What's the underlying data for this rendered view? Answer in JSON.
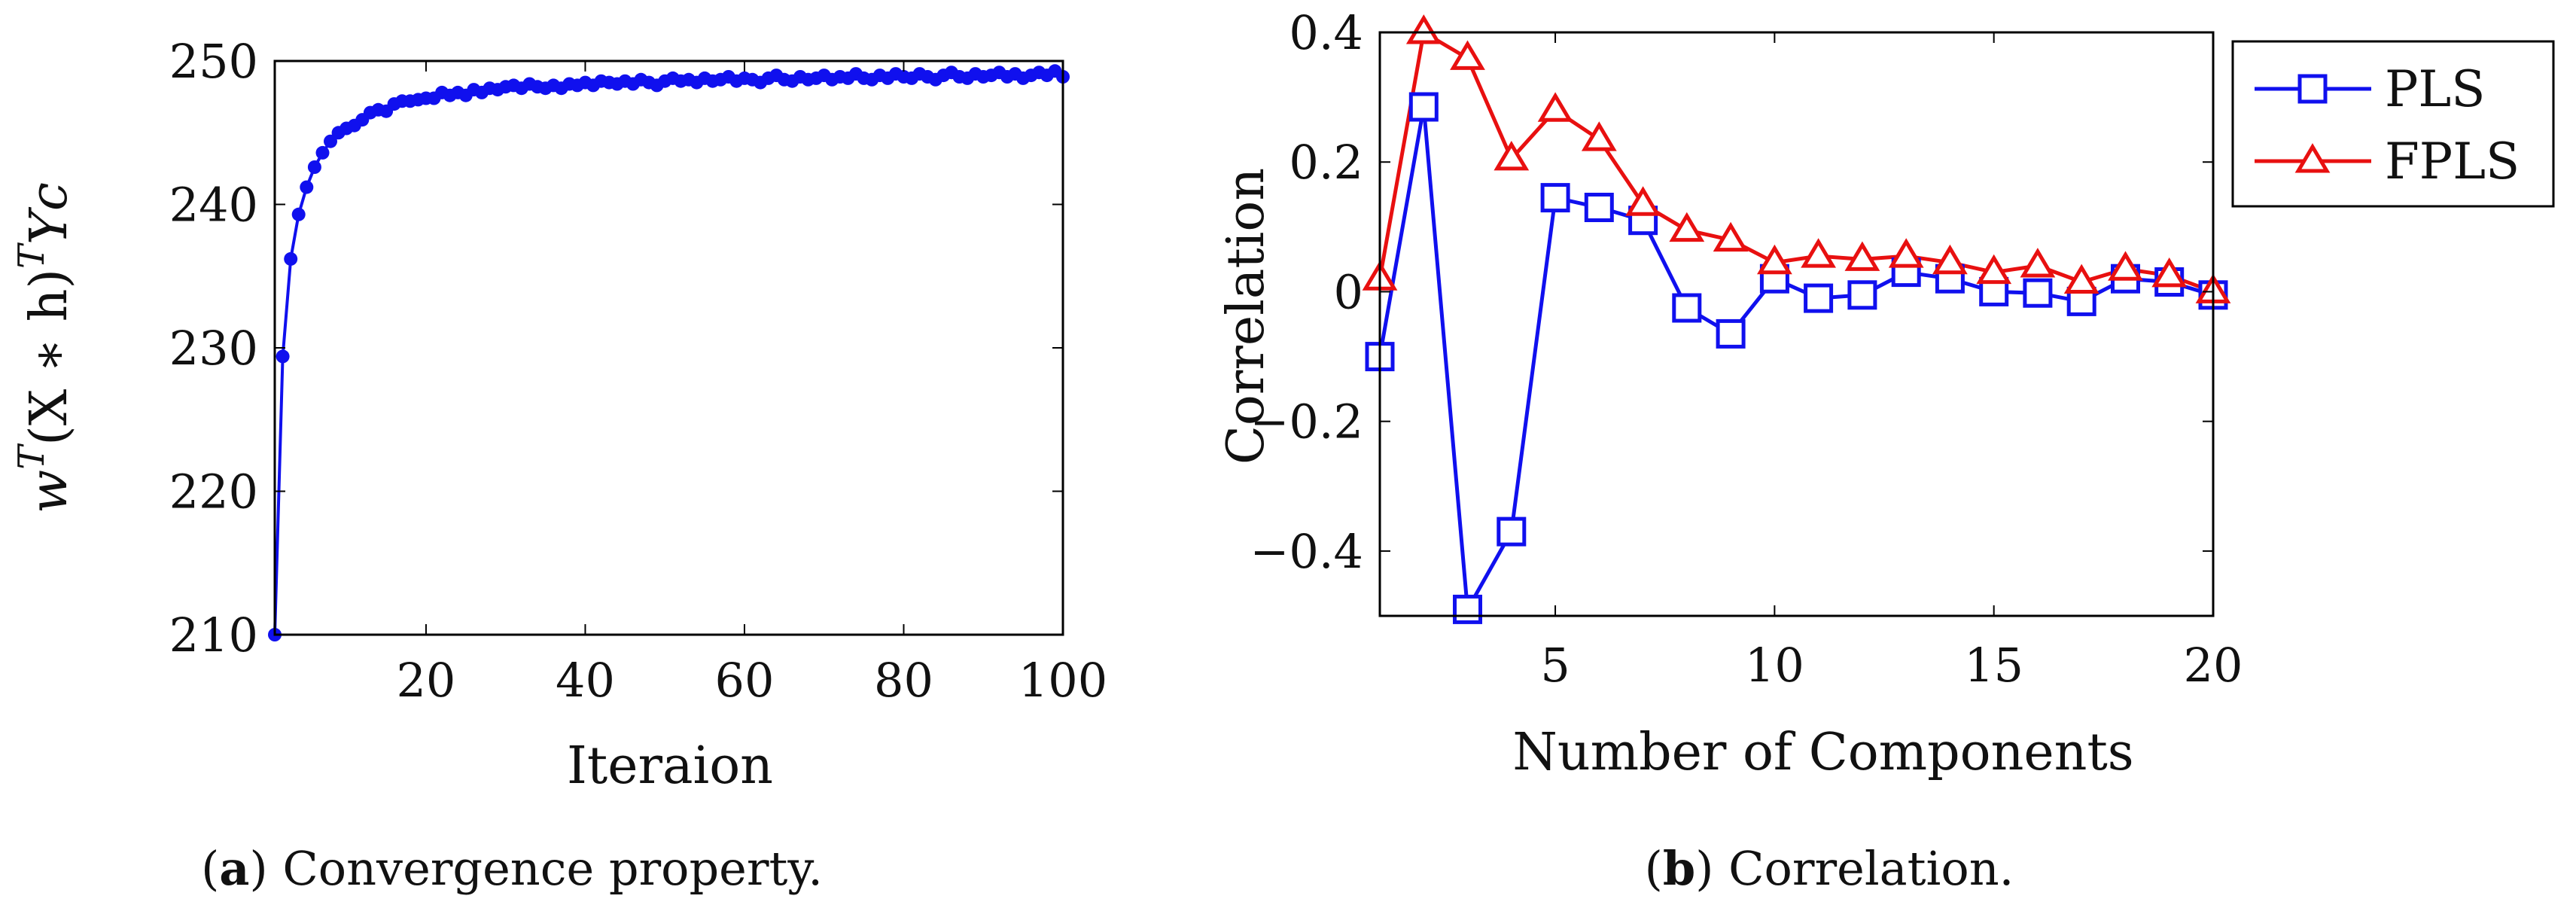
{
  "chart_data": [
    {
      "id": "a",
      "type": "line",
      "title": "",
      "xlabel": "Iteraion",
      "ylabel": "w^T(X * h)^T Y c",
      "ylabel_parts": {
        "w": "w",
        "T1": "T",
        "mid": "(X ∗ h)",
        "T2": "T",
        "Y": "Y",
        "c": "c"
      },
      "xlim": [
        1,
        100
      ],
      "ylim": [
        210,
        250
      ],
      "xticks": [
        20,
        40,
        60,
        80,
        100
      ],
      "yticks": [
        210,
        220,
        230,
        240,
        250
      ],
      "grid": false,
      "series": [
        {
          "name": "convergence",
          "color": "#1010ee",
          "marker": "circle",
          "x": [
            1,
            2,
            3,
            4,
            5,
            6,
            7,
            8,
            9,
            10,
            11,
            12,
            13,
            14,
            15,
            16,
            17,
            18,
            19,
            20,
            21,
            22,
            23,
            24,
            25,
            26,
            27,
            28,
            29,
            30,
            31,
            32,
            33,
            34,
            35,
            36,
            37,
            38,
            39,
            40,
            41,
            42,
            43,
            44,
            45,
            46,
            47,
            48,
            49,
            50,
            51,
            52,
            53,
            54,
            55,
            56,
            57,
            58,
            59,
            60,
            61,
            62,
            63,
            64,
            65,
            66,
            67,
            68,
            69,
            70,
            71,
            72,
            73,
            74,
            75,
            76,
            77,
            78,
            79,
            80,
            81,
            82,
            83,
            84,
            85,
            86,
            87,
            88,
            89,
            90,
            91,
            92,
            93,
            94,
            95,
            96,
            97,
            98,
            99,
            100
          ],
          "values": [
            210.0,
            229.4,
            236.2,
            239.3,
            241.2,
            242.6,
            243.6,
            244.4,
            245.0,
            245.3,
            245.5,
            245.9,
            246.4,
            246.6,
            246.5,
            247.0,
            247.2,
            247.2,
            247.3,
            247.4,
            247.4,
            247.8,
            247.6,
            247.8,
            247.6,
            248.0,
            247.8,
            248.1,
            248.0,
            248.2,
            248.3,
            248.1,
            248.4,
            248.2,
            248.1,
            248.3,
            248.1,
            248.4,
            248.3,
            248.5,
            248.3,
            248.6,
            248.5,
            248.4,
            248.6,
            248.4,
            248.7,
            248.5,
            248.3,
            248.6,
            248.8,
            248.6,
            248.7,
            248.5,
            248.8,
            248.6,
            248.7,
            248.9,
            248.6,
            248.8,
            248.7,
            248.5,
            248.8,
            249.0,
            248.7,
            248.6,
            248.9,
            248.7,
            248.8,
            249.0,
            248.7,
            248.9,
            248.8,
            249.1,
            248.8,
            248.7,
            249.0,
            248.8,
            249.1,
            248.9,
            248.8,
            249.1,
            248.9,
            248.7,
            249.0,
            249.2,
            248.9,
            248.8,
            249.1,
            248.9,
            249.0,
            249.2,
            248.9,
            249.1,
            248.8,
            249.0,
            249.2,
            249.0,
            249.3,
            248.9
          ]
        }
      ],
      "caption": {
        "label": "(a)",
        "label_inner": "a",
        "text": "Convergence property."
      }
    },
    {
      "id": "b",
      "type": "line",
      "title": "",
      "xlabel": "Number of Components",
      "ylabel": "Correlation",
      "xlim": [
        1,
        20
      ],
      "ylim": [
        -0.5,
        0.4
      ],
      "xticks": [
        5,
        10,
        15,
        20
      ],
      "yticks": [
        -0.4,
        -0.2,
        0,
        0.2,
        0.4
      ],
      "ytick_labels": [
        "−0.4",
        "−0.2",
        "0",
        "0.2",
        "0.4"
      ],
      "grid": false,
      "legend": "top-right",
      "x": [
        1,
        2,
        3,
        4,
        5,
        6,
        7,
        8,
        9,
        10,
        11,
        12,
        13,
        14,
        15,
        16,
        17,
        18,
        19,
        20
      ],
      "series": [
        {
          "name": "PLS",
          "color": "#1010ee",
          "marker": "square",
          "values": [
            -0.1,
            0.285,
            -0.49,
            -0.37,
            0.145,
            0.13,
            0.11,
            -0.025,
            -0.065,
            0.02,
            -0.01,
            -0.005,
            0.03,
            0.02,
            0.0,
            -0.002,
            -0.015,
            0.02,
            0.015,
            -0.005
          ]
        },
        {
          "name": "FPLS",
          "color": "#e81010",
          "marker": "triangle",
          "values": [
            0.02,
            0.4,
            0.36,
            0.205,
            0.28,
            0.235,
            0.135,
            0.095,
            0.08,
            0.045,
            0.055,
            0.05,
            0.055,
            0.045,
            0.03,
            0.04,
            0.015,
            0.035,
            0.025,
            0.0
          ]
        }
      ],
      "caption": {
        "label": "(b)",
        "label_inner": "b",
        "text": "Correlation."
      }
    }
  ]
}
